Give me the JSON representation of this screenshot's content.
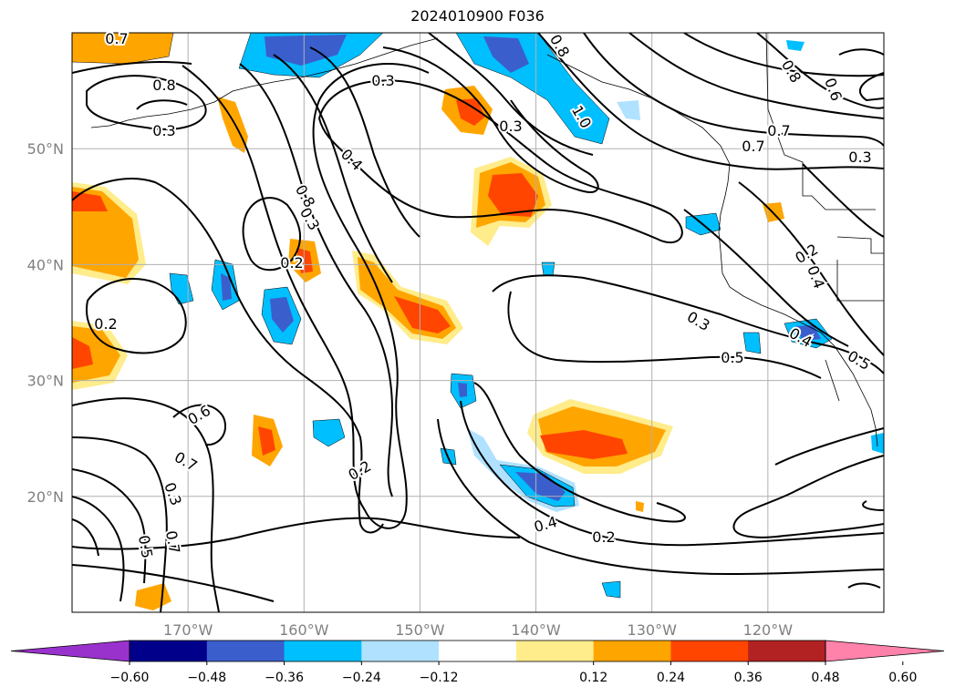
{
  "title": "2024010900 F036",
  "map": {
    "lat_labels": [
      {
        "label": "50°N",
        "lat": 50
      },
      {
        "label": "40°N",
        "lat": 40
      },
      {
        "label": "30°N",
        "lat": 30
      },
      {
        "label": "20°N",
        "lat": 20
      }
    ],
    "lon_labels": [
      {
        "label": "170°W",
        "lon": -170
      },
      {
        "label": "160°W",
        "lon": -160
      },
      {
        "label": "150°W",
        "lon": -150
      },
      {
        "label": "140°W",
        "lon": -140
      },
      {
        "label": "130°W",
        "lon": -130
      },
      {
        "label": "120°W",
        "lon": -120
      }
    ],
    "extent": {
      "lon_min": -180,
      "lon_max": -110,
      "lat_min": 10,
      "lat_max": 60
    },
    "contour_labels": [
      "0.7",
      "0.8",
      "0.3",
      "0.2",
      "0.6",
      "0.7",
      "0.8",
      "0.3",
      "0.2",
      "0.3",
      "0.4",
      "0.2",
      "0.3",
      "0.7",
      "0.5",
      "0.3",
      "1.0",
      "0.8",
      "0.8",
      "0.6",
      "0.7",
      "0.7",
      "0.3",
      "0.2",
      "0.4",
      "0.3",
      "0.5",
      "0.4",
      "0.5",
      "0.4",
      "0.2"
    ]
  },
  "colorbar": {
    "ticks": [
      "−0.60",
      "−0.48",
      "−0.36",
      "−0.24",
      "−0.12",
      "0.12",
      "0.24",
      "0.36",
      "0.48",
      "0.60"
    ],
    "colors": [
      "#9932cc",
      "#00008b",
      "#3a5fcd",
      "#00bfff",
      "#b0e2ff",
      "#ffffff",
      "#ffec8b",
      "#ffa500",
      "#ff4500",
      "#b22222",
      "#ff82ab"
    ]
  }
}
